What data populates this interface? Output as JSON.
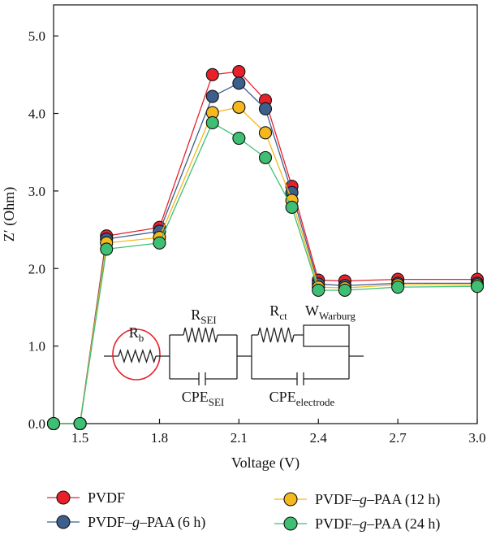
{
  "chart_data": {
    "type": "line",
    "xlabel": "Voltage (V)",
    "ylabel": "Z′ (Ohm)",
    "xlim": [
      1.4,
      3.0
    ],
    "ylim": [
      0.0,
      5.4
    ],
    "x_ticks": [
      "1.5",
      "1.8",
      "2.1",
      "2.4",
      "2.7",
      "3.0"
    ],
    "y_ticks": [
      "0.0",
      "1.0",
      "2.0",
      "3.0",
      "4.0",
      "5.0"
    ],
    "x_tick_values": [
      1.5,
      1.8,
      2.1,
      2.4,
      2.7,
      3.0
    ],
    "y_tick_values": [
      0.0,
      1.0,
      2.0,
      3.0,
      4.0,
      5.0
    ],
    "x": [
      1.4,
      1.5,
      1.6,
      1.8,
      2.0,
      2.1,
      2.2,
      2.3,
      2.4,
      2.5,
      2.7,
      3.0
    ],
    "series": [
      {
        "name": "PVDF",
        "color": "#e8202a",
        "values": [
          0.0,
          0.0,
          2.42,
          2.53,
          4.5,
          4.54,
          4.17,
          3.06,
          1.85,
          1.84,
          1.86,
          1.86
        ]
      },
      {
        "name": "PVDF–g–PAA (6 h)",
        "color": "#3d5f8c",
        "values": [
          0.0,
          0.0,
          2.38,
          2.48,
          4.22,
          4.39,
          4.06,
          2.98,
          1.8,
          1.78,
          1.81,
          1.81
        ]
      },
      {
        "name": "PVDF–g–PAA (12 h)",
        "color": "#f5b81d",
        "values": [
          0.0,
          0.0,
          2.33,
          2.4,
          4.01,
          4.08,
          3.75,
          2.88,
          1.76,
          1.75,
          1.79,
          1.79
        ]
      },
      {
        "name": "PVDF–g–PAA (24 h)",
        "color": "#3fbf73",
        "values": [
          0.0,
          0.0,
          2.25,
          2.33,
          3.88,
          3.68,
          3.43,
          2.79,
          1.72,
          1.72,
          1.76,
          1.77
        ]
      }
    ],
    "legend": {
      "placement": "bottom",
      "labels": [
        {
          "pre": "PVDF",
          "italic": "",
          "post": ""
        },
        {
          "pre": "PVDF–",
          "italic": "g",
          "post": "–PAA (6 h)"
        },
        {
          "pre": "PVDF–",
          "italic": "g",
          "post": "–PAA (12 h)"
        },
        {
          "pre": "PVDF–",
          "italic": "g",
          "post": "–PAA (24 h)"
        }
      ]
    },
    "annotation_circuit": {
      "Rb": {
        "main": "R",
        "sub": "b"
      },
      "RSEI": {
        "main": "R",
        "sub": "SEI"
      },
      "CPESEI": {
        "main": "CPE",
        "sub": "SEI"
      },
      "Rct": {
        "main": "R",
        "sub": "ct"
      },
      "Warburg": {
        "main": "W",
        "sub": "Warburg"
      },
      "CPEelectrode": {
        "main": "CPE",
        "sub": "electrode"
      },
      "highlight_color": "#e8202a"
    }
  }
}
